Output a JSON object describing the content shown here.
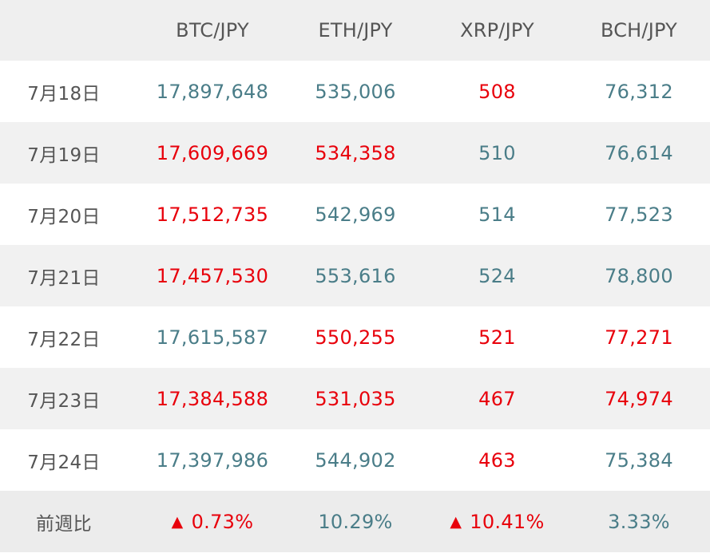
{
  "table": {
    "headers": [
      "",
      "BTC/JPY",
      "ETH/JPY",
      "XRP/JPY",
      "BCH/JPY"
    ],
    "rows": [
      {
        "date": "7月18日",
        "cells": [
          {
            "text": "17,897,648",
            "trend": "down"
          },
          {
            "text": "535,006",
            "trend": "down"
          },
          {
            "text": "508",
            "trend": "up"
          },
          {
            "text": "76,312",
            "trend": "down"
          }
        ]
      },
      {
        "date": "7月19日",
        "cells": [
          {
            "text": "17,609,669",
            "trend": "up"
          },
          {
            "text": "534,358",
            "trend": "up"
          },
          {
            "text": "510",
            "trend": "down"
          },
          {
            "text": "76,614",
            "trend": "down"
          }
        ]
      },
      {
        "date": "7月20日",
        "cells": [
          {
            "text": "17,512,735",
            "trend": "up"
          },
          {
            "text": "542,969",
            "trend": "down"
          },
          {
            "text": "514",
            "trend": "down"
          },
          {
            "text": "77,523",
            "trend": "down"
          }
        ]
      },
      {
        "date": "7月21日",
        "cells": [
          {
            "text": "17,457,530",
            "trend": "up"
          },
          {
            "text": "553,616",
            "trend": "down"
          },
          {
            "text": "524",
            "trend": "down"
          },
          {
            "text": "78,800",
            "trend": "down"
          }
        ]
      },
      {
        "date": "7月22日",
        "cells": [
          {
            "text": "17,615,587",
            "trend": "down"
          },
          {
            "text": "550,255",
            "trend": "up"
          },
          {
            "text": "521",
            "trend": "up"
          },
          {
            "text": "77,271",
            "trend": "up"
          }
        ]
      },
      {
        "date": "7月23日",
        "cells": [
          {
            "text": "17,384,588",
            "trend": "up"
          },
          {
            "text": "531,035",
            "trend": "up"
          },
          {
            "text": "467",
            "trend": "up"
          },
          {
            "text": "74,974",
            "trend": "up"
          }
        ]
      },
      {
        "date": "7月24日",
        "cells": [
          {
            "text": "17,397,986",
            "trend": "down"
          },
          {
            "text": "544,902",
            "trend": "down"
          },
          {
            "text": "463",
            "trend": "up"
          },
          {
            "text": "75,384",
            "trend": "down"
          }
        ]
      }
    ],
    "summary": {
      "label": "前週比",
      "cells": [
        {
          "text": "0.73%",
          "trend": "up",
          "marker": "▲"
        },
        {
          "text": "10.29%",
          "trend": "down",
          "marker": ""
        },
        {
          "text": "10.41%",
          "trend": "up",
          "marker": "▲"
        },
        {
          "text": "3.33%",
          "trend": "down",
          "marker": ""
        }
      ]
    }
  },
  "colors": {
    "up": "#e8000b",
    "down": "#4a7d88",
    "label": "#555555",
    "header_bg": "#efefef",
    "stripe_bg": "#f1f1f1"
  }
}
